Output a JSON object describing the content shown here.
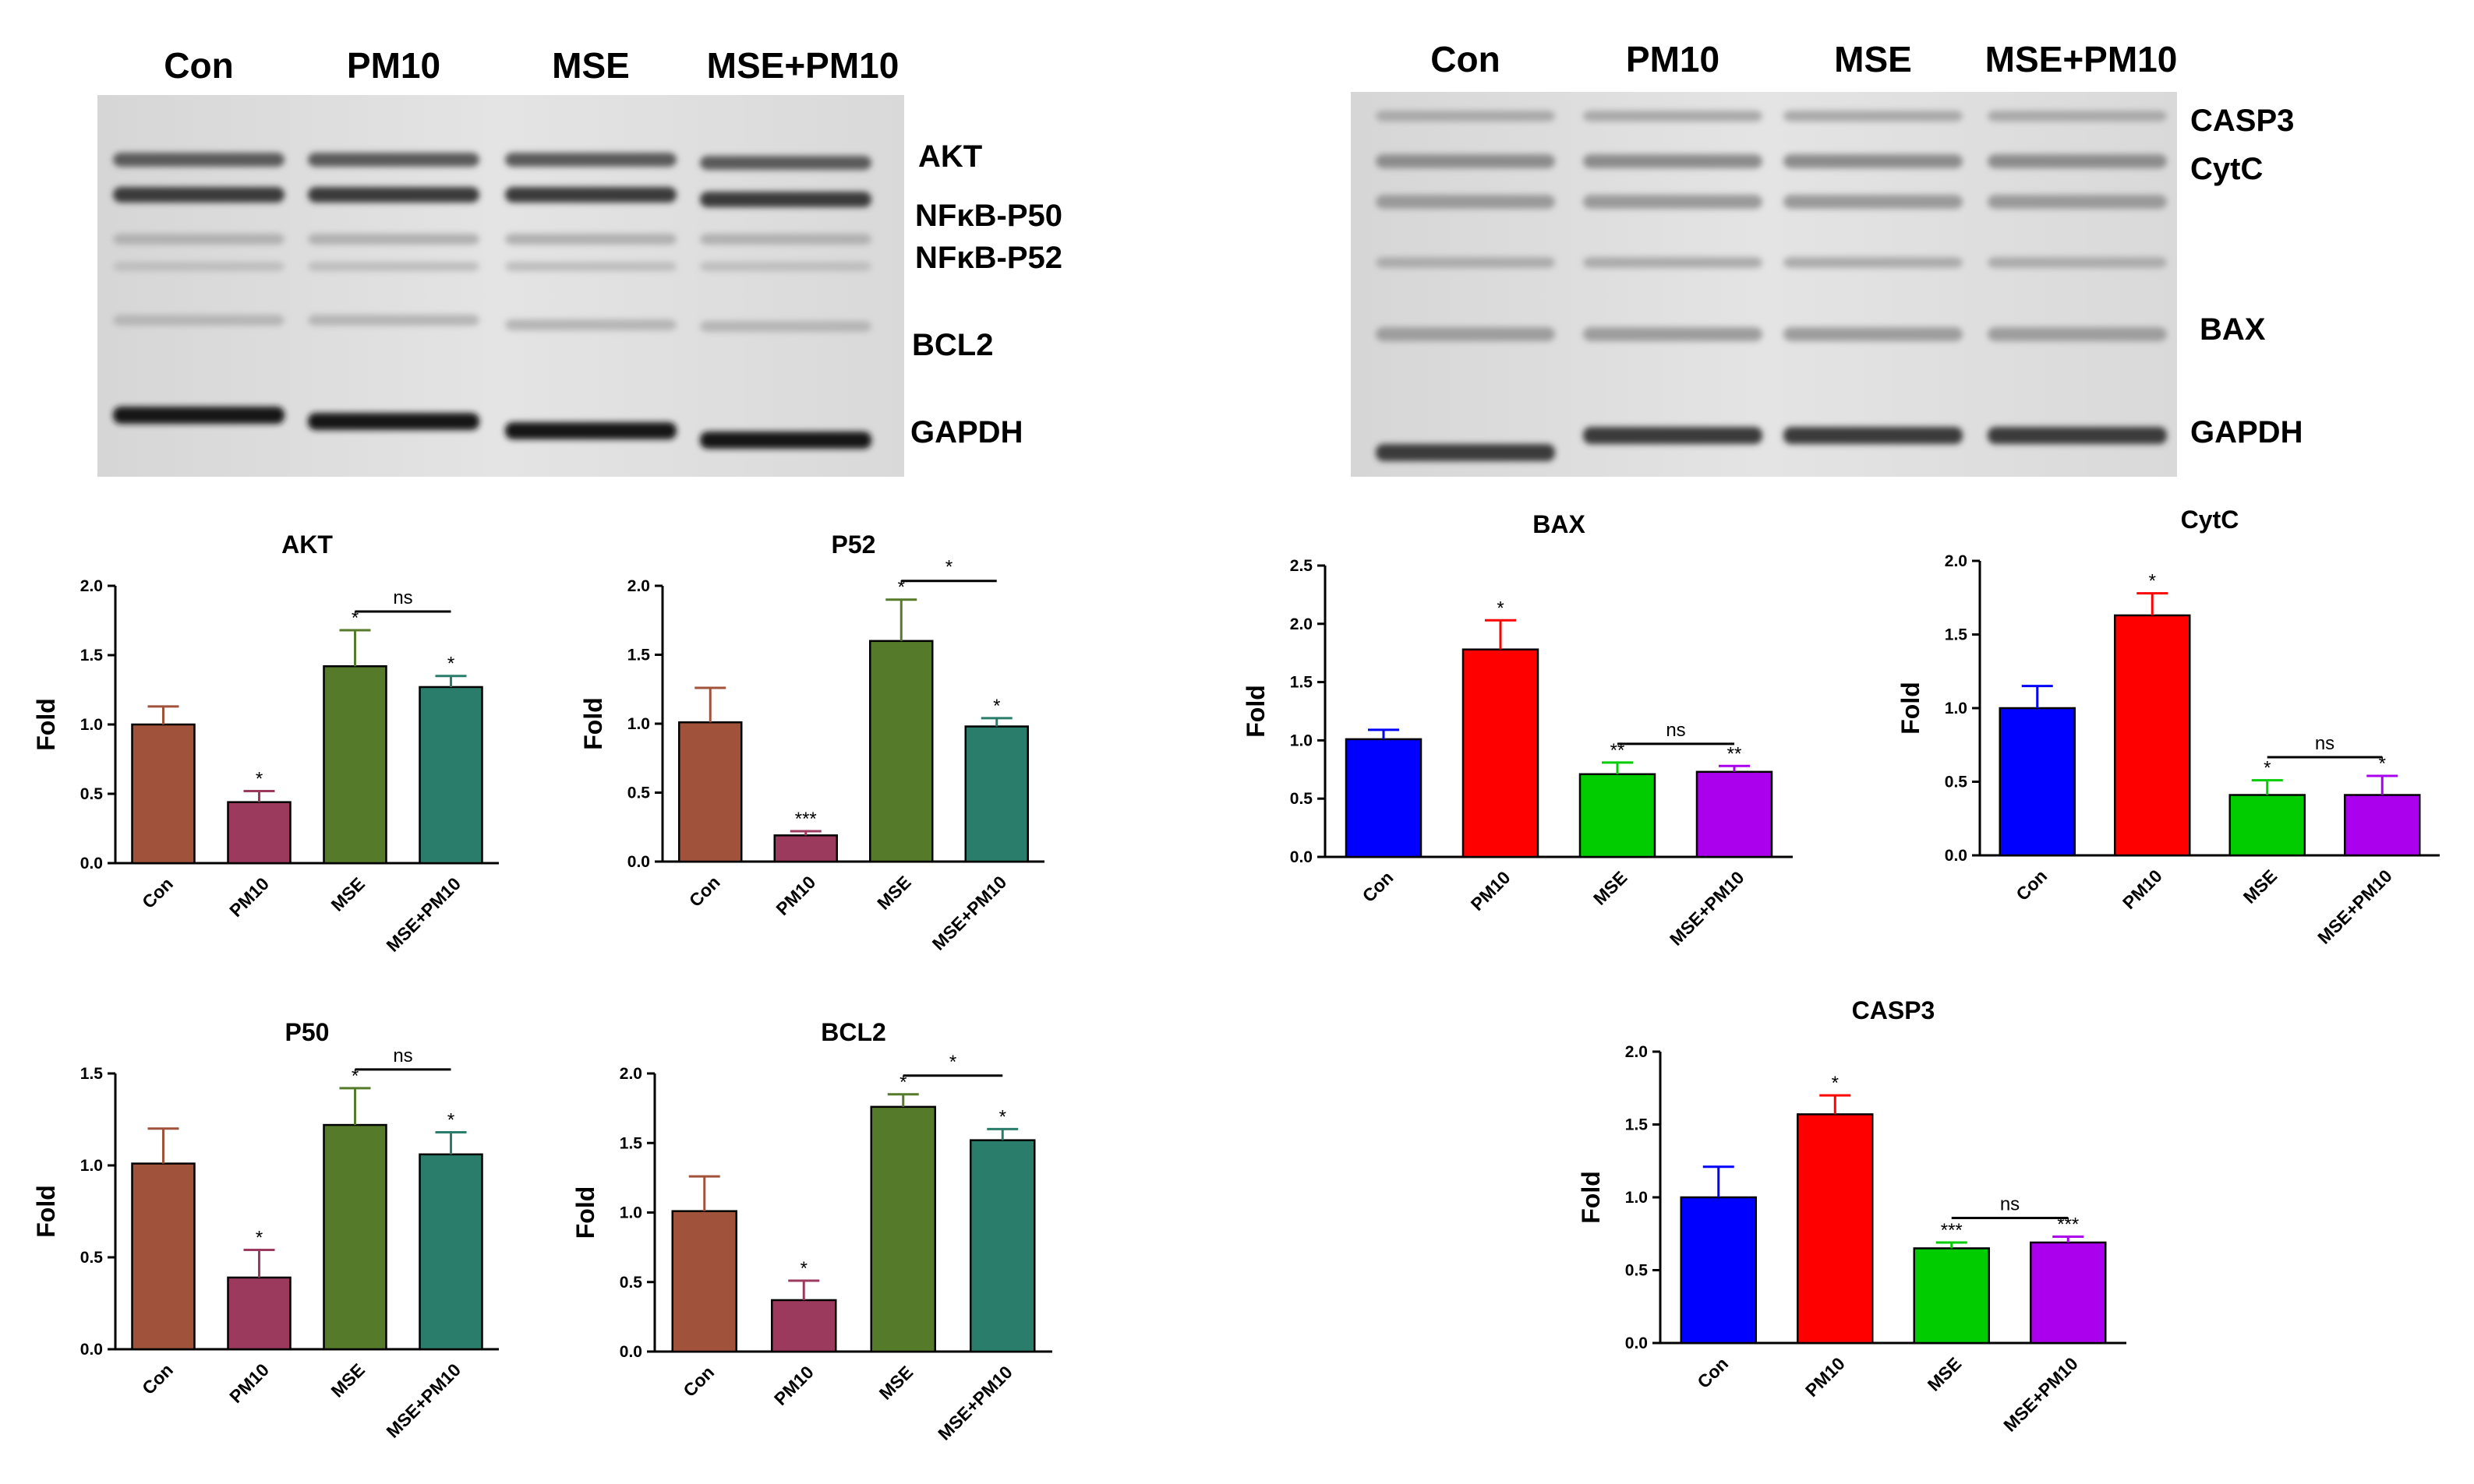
{
  "gels": [
    {
      "lanes": [
        "Con",
        "PM10",
        "MSE",
        "MSE+PM10"
      ],
      "bands": [
        {
          "label": "AKT"
        },
        {
          "label": "NFκB-P50"
        },
        {
          "label": "NFκB-P52"
        },
        {
          "label": "BCL2"
        },
        {
          "label": "GAPDH"
        }
      ]
    },
    {
      "lanes": [
        "Con",
        "PM10",
        "MSE",
        "MSE+PM10"
      ],
      "bands": [
        {
          "label": "CASP3"
        },
        {
          "label": "CytC"
        },
        {
          "label": "BAX"
        },
        {
          "label": "GAPDH"
        }
      ]
    }
  ],
  "chart_data": [
    {
      "type": "bar",
      "title": "AKT",
      "ylabel": "Fold",
      "categories": [
        "Con",
        "PM10",
        "MSE",
        "MSE+PM10"
      ],
      "values": [
        1.0,
        0.44,
        1.42,
        1.27
      ],
      "errors": [
        0.13,
        0.08,
        0.26,
        0.08
      ],
      "colors": [
        "#a0523a",
        "#9c3a5e",
        "#557a2a",
        "#2a7d6a"
      ],
      "ylim": [
        0,
        2.0
      ],
      "yticks": [
        "0.0",
        "0.5",
        "1.0",
        "1.5",
        "2.0"
      ],
      "significance": [
        "",
        "*",
        "*",
        "*"
      ],
      "comparisons": [
        {
          "from": 2,
          "to": 3,
          "label": "ns"
        }
      ]
    },
    {
      "type": "bar",
      "title": "P52",
      "ylabel": "Fold",
      "categories": [
        "Con",
        "PM10",
        "MSE",
        "MSE+PM10"
      ],
      "values": [
        1.01,
        0.19,
        1.6,
        0.98
      ],
      "errors": [
        0.25,
        0.03,
        0.3,
        0.06
      ],
      "colors": [
        "#a0523a",
        "#9c3a5e",
        "#557a2a",
        "#2a7d6a"
      ],
      "ylim": [
        0,
        2.0
      ],
      "yticks": [
        "0.0",
        "0.5",
        "1.0",
        "1.5",
        "2.0"
      ],
      "significance": [
        "",
        "***",
        "*",
        "*"
      ],
      "comparisons": [
        {
          "from": 2,
          "to": 3,
          "label": "*"
        }
      ]
    },
    {
      "type": "bar",
      "title": "P50",
      "ylabel": "Fold",
      "categories": [
        "Con",
        "PM10",
        "MSE",
        "MSE+PM10"
      ],
      "values": [
        1.01,
        0.39,
        1.22,
        1.06
      ],
      "errors": [
        0.19,
        0.15,
        0.2,
        0.12
      ],
      "colors": [
        "#a0523a",
        "#9c3a5e",
        "#557a2a",
        "#2a7d6a"
      ],
      "ylim": [
        0,
        1.5
      ],
      "yticks": [
        "0.0",
        "0.5",
        "1.0",
        "1.5"
      ],
      "significance": [
        "",
        "*",
        "*",
        "*"
      ],
      "comparisons": [
        {
          "from": 2,
          "to": 3,
          "label": "ns"
        }
      ]
    },
    {
      "type": "bar",
      "title": "BCL2",
      "ylabel": "Fold",
      "categories": [
        "Con",
        "PM10",
        "MSE",
        "MSE+PM10"
      ],
      "values": [
        1.01,
        0.37,
        1.76,
        1.52
      ],
      "errors": [
        0.25,
        0.14,
        0.09,
        0.08
      ],
      "colors": [
        "#a0523a",
        "#9c3a5e",
        "#557a2a",
        "#2a7d6a"
      ],
      "ylim": [
        0,
        2.0
      ],
      "yticks": [
        "0.0",
        "0.5",
        "1.0",
        "1.5",
        "2.0"
      ],
      "significance": [
        "",
        "*",
        "*",
        "*"
      ],
      "comparisons": [
        {
          "from": 2,
          "to": 3,
          "label": "*"
        }
      ]
    },
    {
      "type": "bar",
      "title": "BAX",
      "ylabel": "Fold",
      "categories": [
        "Con",
        "PM10",
        "MSE",
        "MSE+PM10"
      ],
      "values": [
        1.01,
        1.78,
        0.71,
        0.73
      ],
      "errors": [
        0.08,
        0.25,
        0.1,
        0.05
      ],
      "colors": [
        "#0000ff",
        "#ff0000",
        "#00cc00",
        "#aa00ee"
      ],
      "ylim": [
        0,
        2.5
      ],
      "yticks": [
        "0.0",
        "0.5",
        "1.0",
        "1.5",
        "2.0",
        "2.5"
      ],
      "significance": [
        "",
        "*",
        "**",
        "**"
      ],
      "comparisons": [
        {
          "from": 2,
          "to": 3,
          "label": "ns"
        }
      ]
    },
    {
      "type": "bar",
      "title": "CytC",
      "ylabel": "Fold",
      "categories": [
        "Con",
        "PM10",
        "MSE",
        "MSE+PM10"
      ],
      "values": [
        1.0,
        1.63,
        0.41,
        0.41
      ],
      "errors": [
        0.15,
        0.15,
        0.1,
        0.13
      ],
      "colors": [
        "#0000ff",
        "#ff0000",
        "#00cc00",
        "#aa00ee"
      ],
      "ylim": [
        0,
        2.0
      ],
      "yticks": [
        "0.0",
        "0.5",
        "1.0",
        "1.5",
        "2.0"
      ],
      "significance": [
        "",
        "*",
        "*",
        "*"
      ],
      "comparisons": [
        {
          "from": 2,
          "to": 3,
          "label": "ns"
        }
      ]
    },
    {
      "type": "bar",
      "title": "CASP3",
      "ylabel": "Fold",
      "categories": [
        "Con",
        "PM10",
        "MSE",
        "MSE+PM10"
      ],
      "values": [
        1.0,
        1.57,
        0.65,
        0.69
      ],
      "errors": [
        0.21,
        0.13,
        0.04,
        0.04
      ],
      "colors": [
        "#0000ff",
        "#ff0000",
        "#00cc00",
        "#aa00ee"
      ],
      "ylim": [
        0,
        2.0
      ],
      "yticks": [
        "0.0",
        "0.5",
        "1.0",
        "1.5",
        "2.0"
      ],
      "significance": [
        "",
        "*",
        "***",
        "***"
      ],
      "comparisons": [
        {
          "from": 2,
          "to": 3,
          "label": "ns"
        }
      ]
    }
  ]
}
